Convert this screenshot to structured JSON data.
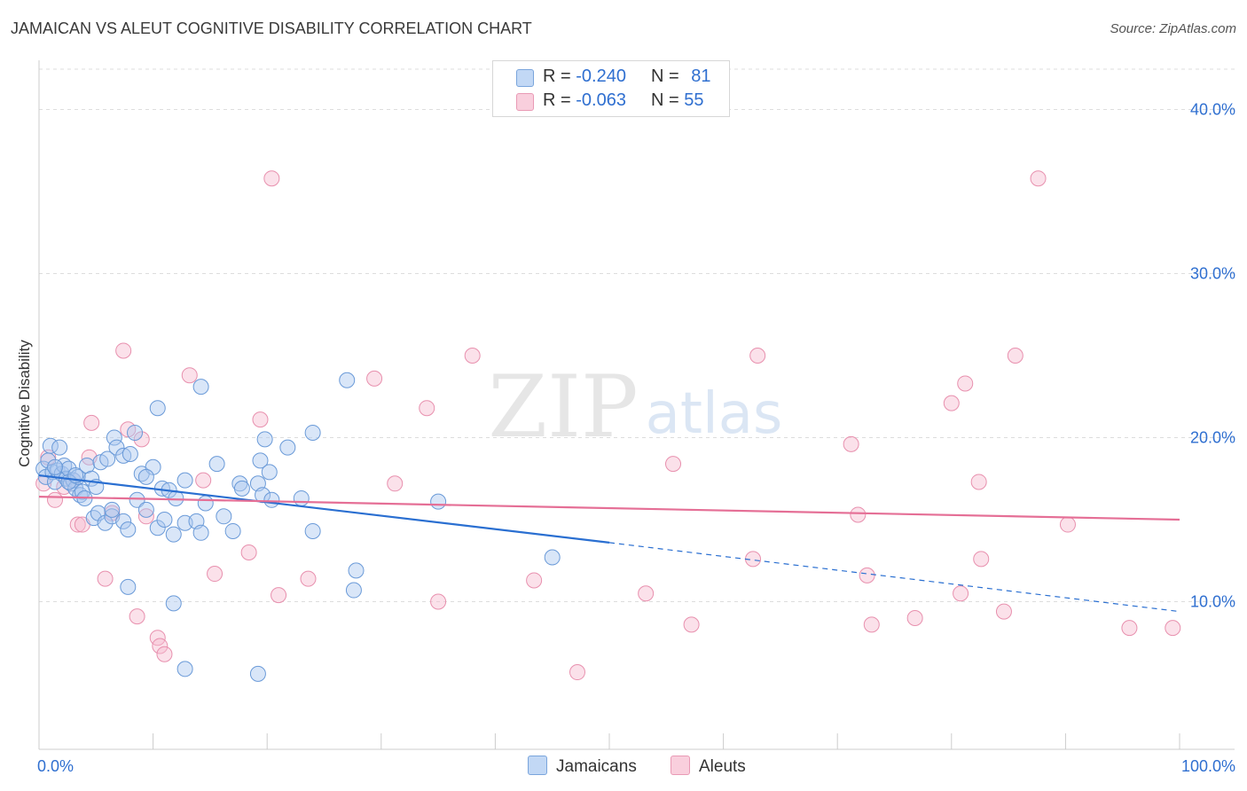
{
  "title": "JAMAICAN VS ALEUT COGNITIVE DISABILITY CORRELATION CHART",
  "source": "Source: ZipAtlas.com",
  "watermark": {
    "zip": "ZIP",
    "atlas": "atlas"
  },
  "colors": {
    "blue_fill": "#aac8f0",
    "blue_stroke": "#6a9ad8",
    "blue_line": "#2a6fd1",
    "pink_fill": "#f7bdd0",
    "pink_stroke": "#e890ae",
    "pink_line": "#e56f96",
    "value_text": "#2f6fd0",
    "grid": "#dddddd"
  },
  "legend_top": {
    "rows": [
      {
        "r_label": "R =",
        "r_value": "-0.240",
        "n_label": "N =",
        "n_value": "81"
      },
      {
        "r_label": "R =",
        "r_value": "-0.063",
        "n_label": "N =",
        "n_value": "55"
      }
    ]
  },
  "legend_bottom": {
    "series1": "Jamaicans",
    "series2": "Aleuts"
  },
  "chart_data": {
    "type": "scatter",
    "title": "JAMAICAN VS ALEUT COGNITIVE DISABILITY CORRELATION CHART",
    "xlabel": "",
    "ylabel": "Cognitive Disability",
    "xlim": [
      0,
      100
    ],
    "ylim": [
      1,
      43
    ],
    "x_tick_labels": [
      "0.0%",
      "100.0%"
    ],
    "y_ticks": [
      10,
      20,
      30,
      40
    ],
    "y_tick_labels": [
      "10.0%",
      "20.0%",
      "30.0%",
      "40.0%"
    ],
    "grid": true,
    "series": [
      {
        "name": "Jamaicans",
        "r": -0.24,
        "n": 81,
        "trend": {
          "x0": 0,
          "y0": 17.7,
          "x1": 50,
          "y1": 13.6,
          "dash_to_x": 100,
          "dash_to_y": 9.4
        },
        "points": [
          [
            0.4,
            18.1
          ],
          [
            0.6,
            17.6
          ],
          [
            0.8,
            18.6
          ],
          [
            1.0,
            19.5
          ],
          [
            1.2,
            17.9
          ],
          [
            1.4,
            17.3
          ],
          [
            1.6,
            18.0
          ],
          [
            1.8,
            19.4
          ],
          [
            2.0,
            17.8
          ],
          [
            2.2,
            18.3
          ],
          [
            2.4,
            17.5
          ],
          [
            2.6,
            18.1
          ],
          [
            2.8,
            17.2
          ],
          [
            3.0,
            17.4
          ],
          [
            3.2,
            16.9
          ],
          [
            3.4,
            17.6
          ],
          [
            3.6,
            16.5
          ],
          [
            3.8,
            16.7
          ],
          [
            4.2,
            18.3
          ],
          [
            4.6,
            17.5
          ],
          [
            5.0,
            17.0
          ],
          [
            5.4,
            18.5
          ],
          [
            6.0,
            18.7
          ],
          [
            6.6,
            20.0
          ],
          [
            6.8,
            19.4
          ],
          [
            7.4,
            18.9
          ],
          [
            8.0,
            19.0
          ],
          [
            8.4,
            20.3
          ],
          [
            9.0,
            17.8
          ],
          [
            10.0,
            18.2
          ],
          [
            10.4,
            21.8
          ],
          [
            10.8,
            16.9
          ],
          [
            11.4,
            16.8
          ],
          [
            12.0,
            16.3
          ],
          [
            12.8,
            17.4
          ],
          [
            4.8,
            15.1
          ],
          [
            5.2,
            15.4
          ],
          [
            5.8,
            14.8
          ],
          [
            6.4,
            15.2
          ],
          [
            7.4,
            14.9
          ],
          [
            7.8,
            14.4
          ],
          [
            8.6,
            16.2
          ],
          [
            9.4,
            15.6
          ],
          [
            10.4,
            14.5
          ],
          [
            11.0,
            15.0
          ],
          [
            11.8,
            14.1
          ],
          [
            12.8,
            14.8
          ],
          [
            13.8,
            14.9
          ],
          [
            14.2,
            14.2
          ],
          [
            14.6,
            16.0
          ],
          [
            15.6,
            18.4
          ],
          [
            16.2,
            15.2
          ],
          [
            17.0,
            14.3
          ],
          [
            17.6,
            17.2
          ],
          [
            17.8,
            16.9
          ],
          [
            19.2,
            17.2
          ],
          [
            19.4,
            18.6
          ],
          [
            19.6,
            16.5
          ],
          [
            19.8,
            19.9
          ],
          [
            20.2,
            17.9
          ],
          [
            20.4,
            16.2
          ],
          [
            21.8,
            19.4
          ],
          [
            23.0,
            16.3
          ],
          [
            24.0,
            20.3
          ],
          [
            24.0,
            14.3
          ],
          [
            27.0,
            23.5
          ],
          [
            27.6,
            10.7
          ],
          [
            27.8,
            11.9
          ],
          [
            14.2,
            23.1
          ],
          [
            35.0,
            16.1
          ],
          [
            45.0,
            12.7
          ],
          [
            7.8,
            10.9
          ],
          [
            11.8,
            9.9
          ],
          [
            12.8,
            5.9
          ],
          [
            19.2,
            5.6
          ],
          [
            2.6,
            17.3
          ],
          [
            3.2,
            17.7
          ],
          [
            4.0,
            16.3
          ],
          [
            9.4,
            17.6
          ],
          [
            1.4,
            18.2
          ],
          [
            6.4,
            15.6
          ]
        ]
      },
      {
        "name": "Aleuts",
        "r": -0.063,
        "n": 55,
        "trend": {
          "x0": 0,
          "y0": 16.4,
          "x1": 100,
          "y1": 15.0
        },
        "points": [
          [
            0.4,
            17.2
          ],
          [
            0.8,
            18.8
          ],
          [
            1.4,
            16.2
          ],
          [
            2.2,
            17.0
          ],
          [
            3.0,
            17.4
          ],
          [
            3.4,
            14.7
          ],
          [
            3.8,
            14.7
          ],
          [
            4.4,
            18.8
          ],
          [
            4.6,
            20.9
          ],
          [
            5.8,
            11.4
          ],
          [
            6.4,
            15.4
          ],
          [
            7.4,
            25.3
          ],
          [
            7.8,
            20.5
          ],
          [
            8.6,
            9.1
          ],
          [
            9.0,
            19.9
          ],
          [
            9.4,
            15.2
          ],
          [
            10.4,
            7.8
          ],
          [
            10.6,
            7.3
          ],
          [
            11.0,
            6.8
          ],
          [
            13.2,
            23.8
          ],
          [
            14.4,
            17.4
          ],
          [
            15.4,
            11.7
          ],
          [
            18.4,
            13.0
          ],
          [
            19.4,
            21.1
          ],
          [
            20.4,
            35.8
          ],
          [
            21.0,
            10.4
          ],
          [
            23.6,
            11.4
          ],
          [
            29.4,
            23.6
          ],
          [
            31.2,
            17.2
          ],
          [
            34.0,
            21.8
          ],
          [
            35.0,
            10.0
          ],
          [
            38.0,
            25.0
          ],
          [
            43.4,
            11.3
          ],
          [
            47.2,
            5.7
          ],
          [
            53.2,
            10.5
          ],
          [
            55.6,
            18.4
          ],
          [
            57.2,
            8.6
          ],
          [
            62.6,
            12.6
          ],
          [
            63.0,
            25.0
          ],
          [
            71.2,
            19.6
          ],
          [
            71.8,
            15.3
          ],
          [
            72.6,
            11.6
          ],
          [
            73.0,
            8.6
          ],
          [
            76.8,
            9.0
          ],
          [
            80.0,
            22.1
          ],
          [
            80.8,
            10.5
          ],
          [
            81.2,
            23.3
          ],
          [
            82.4,
            17.3
          ],
          [
            82.6,
            12.6
          ],
          [
            84.6,
            9.4
          ],
          [
            85.6,
            25.0
          ],
          [
            87.6,
            35.8
          ],
          [
            90.2,
            14.7
          ],
          [
            95.6,
            8.4
          ],
          [
            99.4,
            8.4
          ]
        ]
      }
    ]
  }
}
